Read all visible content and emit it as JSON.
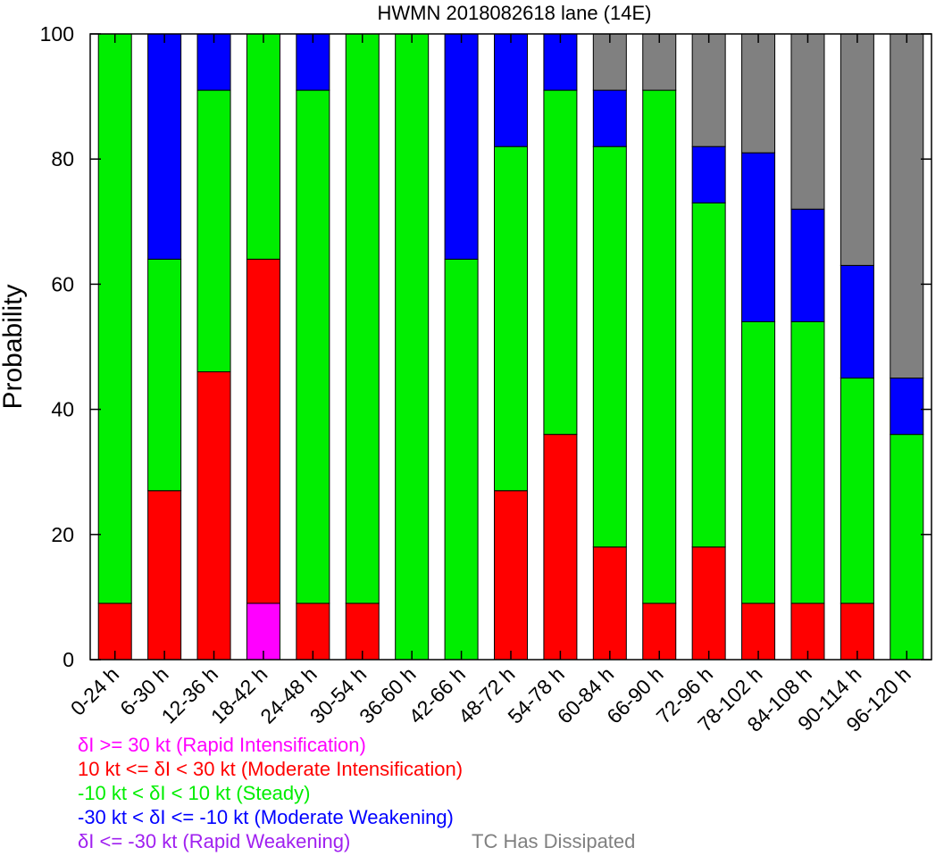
{
  "chart_data": {
    "type": "bar",
    "stacked": true,
    "title": "HWMN 2018082618 lane (14E)",
    "xlabel": "",
    "ylabel": "Probability",
    "ylim": [
      0,
      100
    ],
    "yticks": [
      0,
      20,
      40,
      60,
      80,
      100
    ],
    "grid": false,
    "categories": [
      "0-24 h",
      "6-30 h",
      "12-36 h",
      "18-42 h",
      "24-48 h",
      "30-54 h",
      "36-60 h",
      "42-66 h",
      "48-72 h",
      "54-78 h",
      "60-84 h",
      "66-90 h",
      "72-96 h",
      "78-102 h",
      "84-108 h",
      "90-114 h",
      "96-120 h"
    ],
    "series": [
      {
        "name": "δI >= 30 kt (Rapid Intensification)",
        "color": "#ff00ff",
        "values": [
          0,
          0,
          0,
          9,
          0,
          0,
          0,
          0,
          0,
          0,
          0,
          0,
          0,
          0,
          0,
          0,
          0
        ]
      },
      {
        "name": "10 kt <= δI < 30 kt (Moderate Intensification)",
        "color": "#ff0000",
        "values": [
          9,
          27,
          46,
          55,
          9,
          9,
          0,
          0,
          27,
          36,
          18,
          9,
          18,
          9,
          9,
          9,
          0
        ]
      },
      {
        "name": "-10 kt < δI < 10 kt (Steady)",
        "color": "#00ee00",
        "values": [
          91,
          37,
          45,
          36,
          82,
          91,
          100,
          64,
          55,
          55,
          64,
          82,
          55,
          45,
          45,
          36,
          36
        ]
      },
      {
        "name": "-30 kt < δI <= -10 kt (Moderate Weakening)",
        "color": "#0000ff",
        "values": [
          0,
          36,
          9,
          0,
          9,
          0,
          0,
          36,
          18,
          9,
          9,
          0,
          9,
          27,
          18,
          18,
          9
        ]
      },
      {
        "name": "δI <= -30 kt (Rapid Weakening)",
        "color": "#a020f0",
        "values": [
          0,
          0,
          0,
          0,
          0,
          0,
          0,
          0,
          0,
          0,
          0,
          0,
          0,
          0,
          0,
          0,
          0
        ]
      },
      {
        "name": "TC Has Dissipated",
        "color": "#808080",
        "values": [
          0,
          0,
          0,
          0,
          0,
          0,
          0,
          0,
          0,
          0,
          9,
          9,
          18,
          19,
          28,
          37,
          55
        ]
      }
    ],
    "legend": {
      "position": "bottom",
      "entries": [
        {
          "text": "δI >= 30 kt (Rapid Intensification)",
          "color": "#ff00ff"
        },
        {
          "text": "10 kt <= δI < 30 kt (Moderate Intensification)",
          "color": "#ff0000"
        },
        {
          "text": "-10 kt < δI < 10 kt (Steady)",
          "color": "#00ee00"
        },
        {
          "text": "-30 kt < δI <= -10 kt (Moderate Weakening)",
          "color": "#0000ff"
        },
        {
          "text": "δI <= -30 kt (Rapid Weakening)",
          "color": "#a020f0"
        },
        {
          "text": "TC Has Dissipated",
          "color": "#808080"
        }
      ]
    }
  }
}
